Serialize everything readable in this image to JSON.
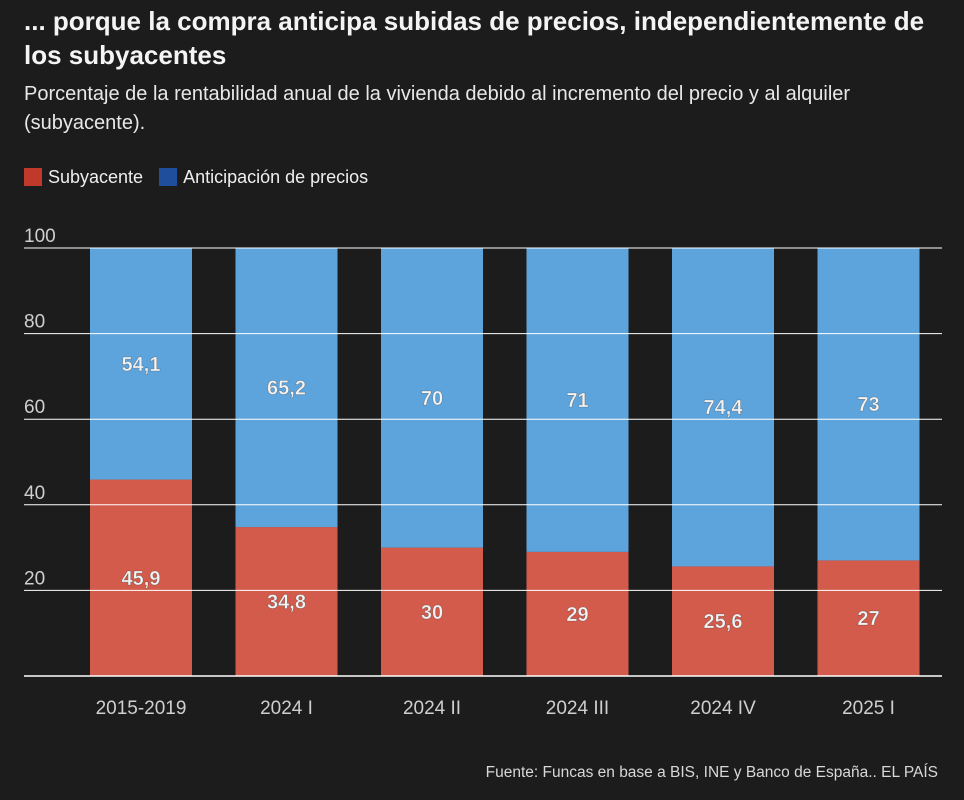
{
  "title": "... porque la compra anticipa subidas de precios, independientemente de los subyacentes",
  "subtitle": "Porcentaje de la rentabilidad anual de la vivienda debido al incremento del precio y al alquiler (subyacente).",
  "source": "Fuente: Funcas en base a BIS, INE y Banco de España.. EL PAÍS",
  "colors": {
    "background": "#1c1c1c",
    "subyacente": "#d35b4c",
    "subyacente_legend": "#c0392b",
    "anticipacion": "#5ea4dc",
    "anticipacion_legend": "#1f4e9c",
    "grid": "#ffffff",
    "axis_text": "#cfcfcf"
  },
  "chart_data": {
    "type": "bar",
    "stacked": true,
    "categories": [
      "2015-2019",
      "2024 I",
      "2024 II",
      "2024 III",
      "2024 IV",
      "2025 I"
    ],
    "series": [
      {
        "name": "Subyacente",
        "values": [
          45.9,
          34.8,
          30,
          29,
          25.6,
          27
        ],
        "labels": [
          "45,9",
          "34,8",
          "30",
          "29",
          "25,6",
          "27"
        ]
      },
      {
        "name": "Anticipación de precios",
        "values": [
          54.1,
          65.2,
          70,
          71,
          74.4,
          73
        ],
        "labels": [
          "54,1",
          "65,2",
          "70",
          "71",
          "74,4",
          "73"
        ]
      }
    ],
    "yticks": [
      20,
      40,
      60,
      80,
      100
    ],
    "ylim": [
      0,
      100
    ],
    "grid": true,
    "legend_position": "top-left"
  }
}
